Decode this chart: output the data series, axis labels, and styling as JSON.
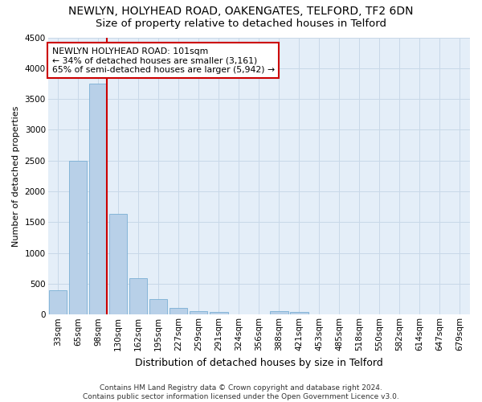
{
  "title": "NEWLYN, HOLYHEAD ROAD, OAKENGATES, TELFORD, TF2 6DN",
  "subtitle": "Size of property relative to detached houses in Telford",
  "xlabel": "Distribution of detached houses by size in Telford",
  "ylabel": "Number of detached properties",
  "footer_line1": "Contains HM Land Registry data © Crown copyright and database right 2024.",
  "footer_line2": "Contains public sector information licensed under the Open Government Licence v3.0.",
  "categories": [
    "33sqm",
    "65sqm",
    "98sqm",
    "130sqm",
    "162sqm",
    "195sqm",
    "227sqm",
    "259sqm",
    "291sqm",
    "324sqm",
    "356sqm",
    "388sqm",
    "421sqm",
    "453sqm",
    "485sqm",
    "518sqm",
    "550sqm",
    "582sqm",
    "614sqm",
    "647sqm",
    "679sqm"
  ],
  "values": [
    390,
    2500,
    3750,
    1630,
    590,
    245,
    110,
    60,
    40,
    0,
    0,
    55,
    40,
    0,
    0,
    0,
    0,
    0,
    0,
    0,
    0
  ],
  "bar_color": "#b8d0e8",
  "bar_edge_color": "#7aafd4",
  "vline_color": "#cc0000",
  "annotation_text_line1": "NEWLYN HOLYHEAD ROAD: 101sqm",
  "annotation_text_line2": "← 34% of detached houses are smaller (3,161)",
  "annotation_text_line3": "65% of semi-detached houses are larger (5,942) →",
  "annotation_box_color": "#ffffff",
  "annotation_box_edge": "#cc0000",
  "ylim": [
    0,
    4500
  ],
  "yticks": [
    0,
    500,
    1000,
    1500,
    2000,
    2500,
    3000,
    3500,
    4000,
    4500
  ],
  "grid_color": "#c8d8e8",
  "bg_color": "#e4eef8",
  "title_fontsize": 10,
  "subtitle_fontsize": 9.5,
  "xlabel_fontsize": 9,
  "ylabel_fontsize": 8,
  "tick_fontsize": 7.5,
  "footer_fontsize": 6.5
}
